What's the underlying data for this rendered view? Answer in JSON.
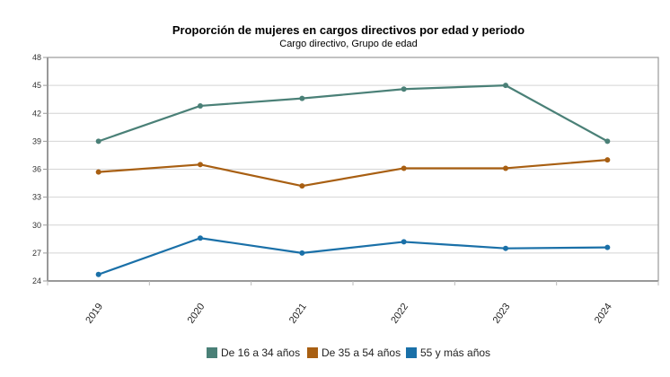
{
  "chart_data": {
    "type": "line",
    "title": "Proporción de mujeres en cargos directivos por edad y periodo",
    "subtitle": "Cargo directivo, Grupo de edad",
    "xlabel": "",
    "ylabel": "",
    "categories": [
      "2019",
      "2020",
      "2021",
      "2022",
      "2023",
      "2024"
    ],
    "ylim": [
      24,
      48
    ],
    "yticks": [
      24,
      27,
      30,
      33,
      36,
      39,
      42,
      45,
      48
    ],
    "grid": true,
    "legend_position": "bottom",
    "series": [
      {
        "name": "De 16 a 34 años",
        "color": "#4a8077",
        "values": [
          39.0,
          42.8,
          43.6,
          44.6,
          45.0,
          39.0
        ]
      },
      {
        "name": "De 35 a 54 años",
        "color": "#a85f12",
        "values": [
          35.7,
          36.5,
          34.2,
          36.1,
          36.1,
          37.0
        ]
      },
      {
        "name": "55 y más años",
        "color": "#1a70a8",
        "values": [
          24.7,
          28.6,
          27.0,
          28.2,
          27.5,
          27.6
        ]
      }
    ]
  }
}
